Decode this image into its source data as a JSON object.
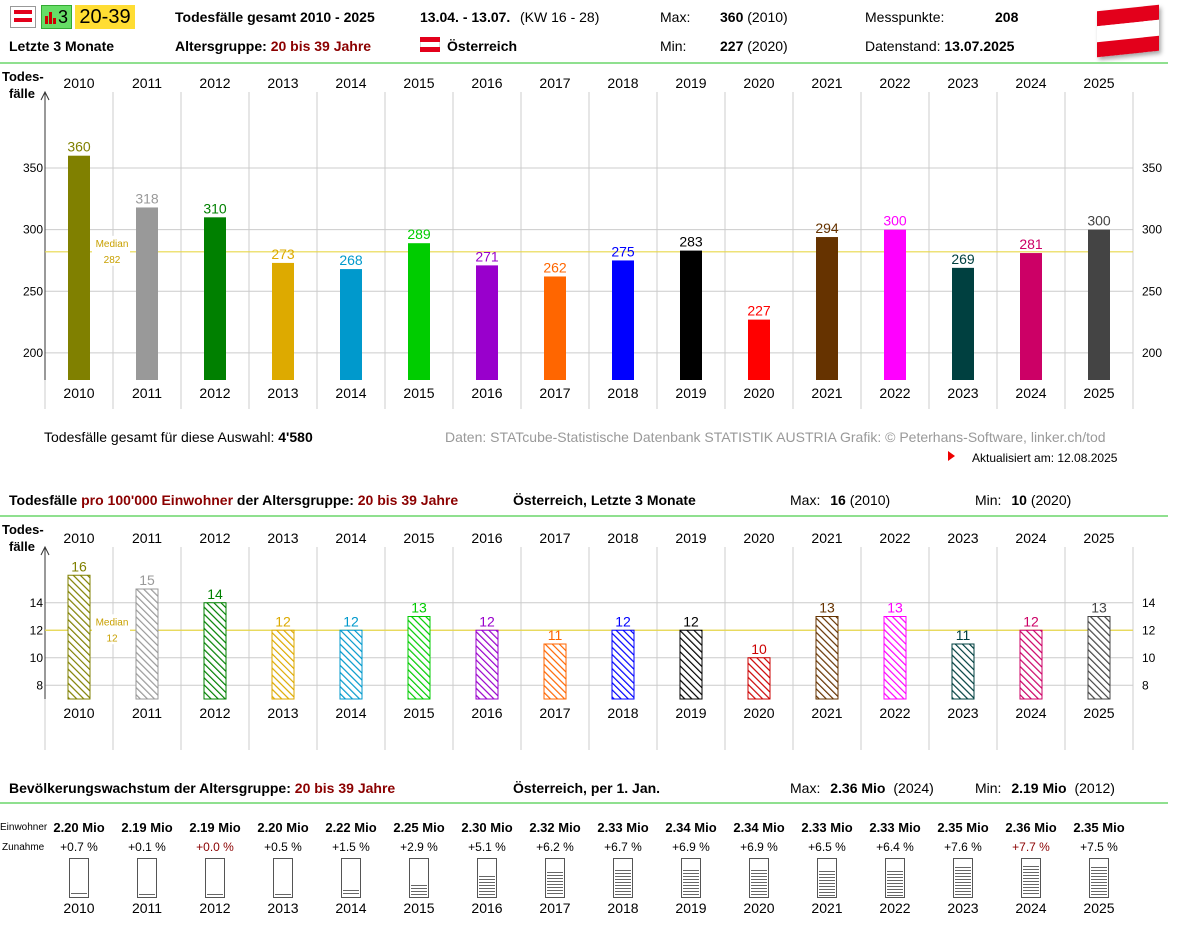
{
  "header": {
    "age_button": "20-39",
    "chart_button": "3",
    "title": "Todesfälle gesamt 2010 - 2025",
    "period": "13.04. - 13.07.",
    "kw": "(KW 16 - 28)",
    "max_label": "Max:",
    "max_value": "360",
    "max_year": "(2010)",
    "min_label": "Min:",
    "min_value": "227",
    "min_year": "(2020)",
    "messpunkte_label": "Messpunkte:",
    "messpunkte_value": "208",
    "range_label": "Letzte 3 Monate",
    "age_label": "Altersgruppe:",
    "age_value": "20 bis 39 Jahre",
    "country": "Österreich",
    "datenstand_label": "Datenstand:",
    "datenstand_value": "13.07.2025"
  },
  "info": {
    "total_label": "Todesfälle gesamt für diese Auswahl:",
    "total_value": "4'580",
    "source": "Daten: STATcube-Statistische Datenbank STATISTIK AUSTRIA  Grafik: © Peterhans-Software, linker.ch/tod",
    "updated": "Aktualisiert am: 12.08.2025"
  },
  "section2": {
    "t1": "Todesfälle",
    "t2": "pro 100'000 Einwohner",
    "t3": "der Altersgruppe:",
    "t4": "20 bis 39 Jahre",
    "region": "Österreich, Letzte 3 Monate",
    "max_label": "Max:",
    "max_value": "16",
    "max_year": "(2010)",
    "min_label": "Min:",
    "min_value": "10",
    "min_year": "(2020)"
  },
  "section3": {
    "t1": "Bevölkerungswachstum der Altersgruppe:",
    "t2": "20 bis 39 Jahre",
    "region": "Österreich, per 1. Jan.",
    "max_label": "Max:",
    "max_value": "2.36 Mio",
    "max_year": "(2024)",
    "min_label": "Min:",
    "min_value": "2.19 Mio",
    "min_year": "(2012)",
    "row1_label": "Einwohner",
    "row2_label": "Zunahme"
  },
  "chart_data": [
    {
      "type": "bar",
      "ylabel": "Todes-\nfälle",
      "ylim": [
        178,
        363
      ],
      "yticks": [
        200,
        250,
        300,
        350
      ],
      "median": 282,
      "median_label": "Median",
      "categories": [
        "2010",
        "2011",
        "2012",
        "2013",
        "2014",
        "2015",
        "2016",
        "2017",
        "2018",
        "2019",
        "2020",
        "2021",
        "2022",
        "2023",
        "2024",
        "2025"
      ],
      "values": [
        360,
        318,
        310,
        273,
        268,
        289,
        271,
        262,
        275,
        283,
        227,
        294,
        300,
        269,
        281,
        300
      ],
      "colors": [
        "#808000",
        "#999999",
        "#008000",
        "#ddaa00",
        "#0099cc",
        "#00cc00",
        "#9900cc",
        "#ff6600",
        "#0000ff",
        "#000000",
        "#ff0000",
        "#663300",
        "#ff00ff",
        "#004040",
        "#cc0066",
        "#444444"
      ]
    },
    {
      "type": "bar",
      "ylabel": "Todes-\nfälle",
      "ylim": [
        7,
        16.6
      ],
      "yticks": [
        8,
        10,
        12,
        14
      ],
      "median": 12,
      "median_label": "Median",
      "categories": [
        "2010",
        "2011",
        "2012",
        "2013",
        "2014",
        "2015",
        "2016",
        "2017",
        "2018",
        "2019",
        "2020",
        "2021",
        "2022",
        "2023",
        "2024",
        "2025"
      ],
      "values": [
        16,
        15,
        14,
        12,
        12,
        13,
        12,
        11,
        12,
        12,
        10,
        13,
        13,
        11,
        12,
        13
      ],
      "colors": [
        "#808000",
        "#999999",
        "#008000",
        "#ddaa00",
        "#0099cc",
        "#00cc00",
        "#9900cc",
        "#ff6600",
        "#0000ff",
        "#000000",
        "#cc0000",
        "#663300",
        "#ff00ff",
        "#004040",
        "#cc0066",
        "#444444"
      ]
    },
    {
      "type": "table",
      "categories": [
        "2010",
        "2011",
        "2012",
        "2013",
        "2014",
        "2015",
        "2016",
        "2017",
        "2018",
        "2019",
        "2020",
        "2021",
        "2022",
        "2023",
        "2024",
        "2025"
      ],
      "population": [
        "2.20 Mio",
        "2.19 Mio",
        "2.19 Mio",
        "2.20 Mio",
        "2.22 Mio",
        "2.25 Mio",
        "2.30 Mio",
        "2.32 Mio",
        "2.33 Mio",
        "2.34 Mio",
        "2.34 Mio",
        "2.33 Mio",
        "2.33 Mio",
        "2.35 Mio",
        "2.36 Mio",
        "2.35 Mio"
      ],
      "growth": [
        "+0.7 %",
        "+0.1 %",
        "+0.0 %",
        "+0.5 %",
        "+1.5 %",
        "+2.9 %",
        "+5.1 %",
        "+6.2 %",
        "+6.7 %",
        "+6.9 %",
        "+6.9 %",
        "+6.5 %",
        "+6.4 %",
        "+7.6 %",
        "+7.7 %",
        "+7.5 %"
      ],
      "growth_highlight": [
        false,
        false,
        true,
        false,
        false,
        false,
        false,
        false,
        false,
        false,
        false,
        false,
        false,
        false,
        true,
        false
      ],
      "growth_percent": [
        0.7,
        0.1,
        0.0,
        0.5,
        1.5,
        2.9,
        5.1,
        6.2,
        6.7,
        6.9,
        6.9,
        6.5,
        6.4,
        7.6,
        7.7,
        7.5
      ]
    }
  ]
}
